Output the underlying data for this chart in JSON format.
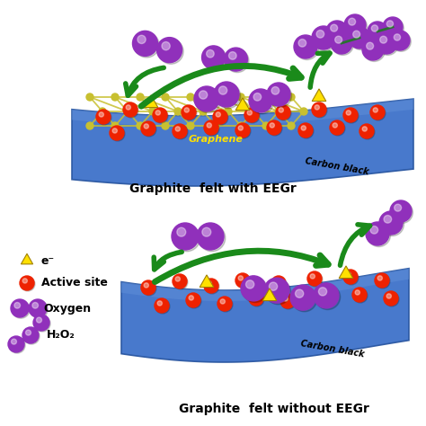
{
  "title_top": "Graphite  felt with EEGr",
  "title_bottom": "Graphite  felt without EEGr",
  "purple": "#9030BB",
  "green": "#1A8A1A",
  "red": "#EE2200",
  "yellow": "#FFE000",
  "blue_dark": "#2855A0",
  "blue_mid": "#3A6FC8",
  "blue_light": "#6090D8",
  "graphene_y": "#C8C030",
  "bg": "#FFFFFF",
  "carbon_black_label": "Carbon black",
  "graphene_label": "Graphene",
  "legend_e": "e⁻",
  "legend_active": "Active site",
  "legend_oxygen": "Oxygen",
  "legend_h2o2": "H₂O₂"
}
